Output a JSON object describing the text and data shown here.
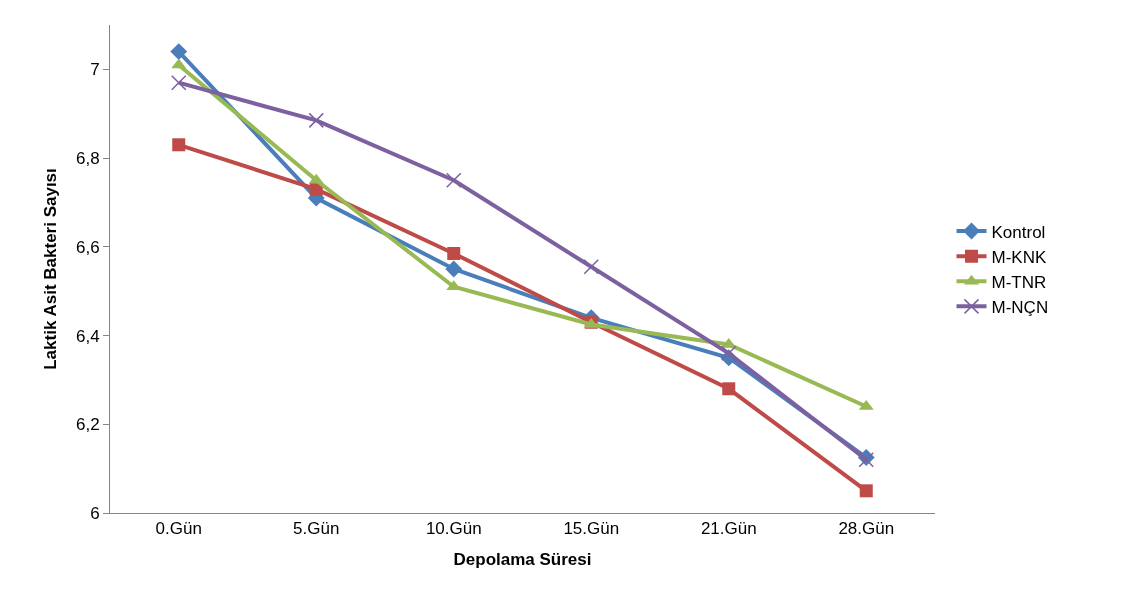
{
  "chart_data": {
    "type": "line",
    "xlabel": "Depolama Süresi",
    "ylabel": "Laktik Asit Bakteri Sayısı",
    "categories": [
      "0.Gün",
      "5.Gün",
      "10.Gün",
      "15.Gün",
      "21.Gün",
      "28.Gün"
    ],
    "series": [
      {
        "name": "Kontrol",
        "color": "#4a7ebb",
        "marker": "diamond",
        "values": [
          7.04,
          6.71,
          6.55,
          6.44,
          6.35,
          6.125
        ]
      },
      {
        "name": "M-KNK",
        "color": "#be4b48",
        "marker": "square",
        "values": [
          6.83,
          6.73,
          6.585,
          6.43,
          6.28,
          6.05
        ]
      },
      {
        "name": "M-TNR",
        "color": "#98b954",
        "marker": "triangle",
        "values": [
          7.01,
          6.75,
          6.51,
          6.425,
          6.38,
          6.24
        ]
      },
      {
        "name": "M-NÇN",
        "color": "#7d60a0",
        "marker": "cross",
        "values": [
          6.97,
          6.885,
          6.75,
          6.555,
          6.36,
          6.12
        ]
      }
    ],
    "ylim": [
      6,
      7.1
    ],
    "yticks": [
      {
        "value": 6,
        "label": "6"
      },
      {
        "value": 6.2,
        "label": "6,2"
      },
      {
        "value": 6.4,
        "label": "6,4"
      },
      {
        "value": 6.6,
        "label": "6,6"
      },
      {
        "value": 6.8,
        "label": "6,8"
      },
      {
        "value": 7,
        "label": "7"
      }
    ],
    "legend": "right"
  }
}
